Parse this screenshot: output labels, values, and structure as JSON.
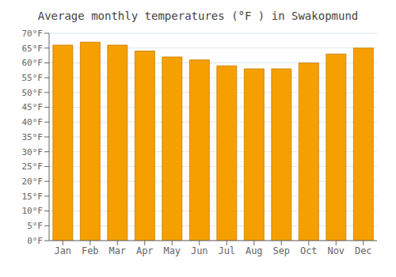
{
  "chart_data": {
    "type": "bar",
    "title": "Average monthly temperatures (°F ) in Swakopmund",
    "categories": [
      "Jan",
      "Feb",
      "Mar",
      "Apr",
      "May",
      "Jun",
      "Jul",
      "Aug",
      "Sep",
      "Oct",
      "Nov",
      "Dec"
    ],
    "values": [
      66,
      67,
      66,
      64,
      62,
      61,
      59,
      58,
      58,
      60,
      63,
      65
    ],
    "color": "#F5A000",
    "ylim": [
      0,
      70
    ],
    "yticks": [
      {
        "value": 0,
        "label": "0°F"
      },
      {
        "value": 5,
        "label": "5°F"
      },
      {
        "value": 10,
        "label": "10°F"
      },
      {
        "value": 15,
        "label": "15°F"
      },
      {
        "value": 20,
        "label": "20°F"
      },
      {
        "value": 25,
        "label": "25°F"
      },
      {
        "value": 30,
        "label": "30°F"
      },
      {
        "value": 35,
        "label": "35°F"
      },
      {
        "value": 40,
        "label": "40°F"
      },
      {
        "value": 45,
        "label": "45°F"
      },
      {
        "value": 50,
        "label": "50°F"
      },
      {
        "value": 55,
        "label": "55°F"
      },
      {
        "value": 60,
        "label": "60°F"
      },
      {
        "value": 65,
        "label": "65°F"
      },
      {
        "value": 70,
        "label": "70°F"
      }
    ],
    "grid": true
  }
}
